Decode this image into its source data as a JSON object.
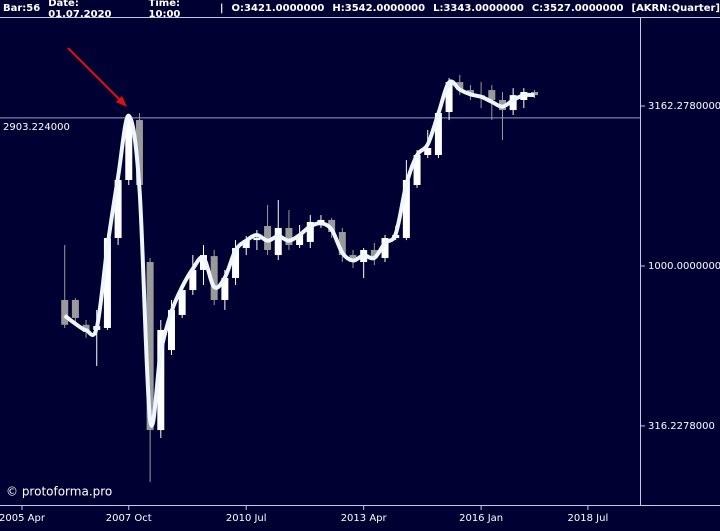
{
  "chart_data": {
    "type": "candlestick",
    "header": [
      "Bar:56",
      "Date: 01.07.2020",
      "Time: 10:00",
      "|",
      "O:3421.0000000",
      "H:3542.0000000",
      "L:3343.0000000",
      "C:3527.0000000",
      "[AKRN:Quarter]"
    ],
    "watermark": "© protoforma.pro",
    "log_scale": true,
    "up_color": "#ffffff",
    "down_color": "#9a9a9a",
    "xlim": [
      2004.735,
      2019.72
    ],
    "ylim": [
      179,
      5960
    ],
    "xticks": [
      {
        "value": 2005.25,
        "label": "2005 Apr"
      },
      {
        "value": 2007.75,
        "label": "2007 Oct"
      },
      {
        "value": 2010.5,
        "label": "2010 Jul"
      },
      {
        "value": 2013.25,
        "label": "2013 Apr"
      },
      {
        "value": 2016.0,
        "label": "2016 Jan"
      },
      {
        "value": 2018.5,
        "label": "2018 Jul"
      }
    ],
    "yticks": [
      {
        "value": 316.2278,
        "label": "316.2278000"
      },
      {
        "value": 1000,
        "label": "1000.0000000"
      },
      {
        "value": 3162.278,
        "label": "3162.2780000"
      }
    ],
    "hline": {
      "value": 2903.224,
      "label": "2903.224000",
      "color": "#8fa0c8"
    },
    "x": [
      2006.25,
      2006.5,
      2006.75,
      2007.0,
      2007.25,
      2007.5,
      2007.75,
      2008.0,
      2008.25,
      2008.5,
      2008.75,
      2009.0,
      2009.25,
      2009.5,
      2009.75,
      2010.0,
      2010.25,
      2010.5,
      2010.75,
      2011.0,
      2011.25,
      2011.5,
      2011.75,
      2012.0,
      2012.25,
      2012.5,
      2012.75,
      2013.0,
      2013.25,
      2013.5,
      2013.75,
      2014.0,
      2014.25,
      2014.5,
      2014.75,
      2015.0,
      2015.25,
      2015.5,
      2015.75,
      2016.0,
      2016.25,
      2016.5,
      2016.75,
      2017.0,
      2017.25
    ],
    "open": [
      783,
      783,
      655,
      631,
      640,
      1223,
      1857,
      2859,
      1029,
      307,
      546,
      703,
      841,
      972,
      1074,
      783,
      917,
      1138,
      1205,
      1334,
      1082,
      1315,
      1163,
      1189,
      1373,
      1393,
      1277,
      1082,
      1029,
      1122,
      1059,
      1223,
      1223,
      1791,
      2223,
      2223,
      3029,
      3758,
      3548,
      3421,
      3548,
      3303,
      3073,
      3303,
      3499
    ],
    "high": [
      1163,
      794,
      678,
      729,
      1223,
      1923,
      2964,
      3008,
      1059,
      678,
      783,
      853,
      1082,
      1163,
      1122,
      972,
      1205,
      1241,
      1296,
      1552,
      1608,
      1496,
      1343,
      1443,
      1443,
      1413,
      1315,
      1122,
      1138,
      1180,
      1250,
      1334,
      2143,
      2304,
      2661,
      3073,
      3869,
      3954,
      3678,
      3758,
      3678,
      3499,
      3597,
      3597,
      3548
    ],
    "low": [
      640,
      668,
      596,
      487,
      631,
      1163,
      1791,
      1754,
      211,
      290,
      527,
      688,
      812,
      872,
      755,
      729,
      872,
      1082,
      1122,
      1082,
      1044,
      1122,
      1138,
      1138,
      1315,
      1223,
      1029,
      986,
      917,
      1007,
      1029,
      1205,
      1205,
      1754,
      2175,
      2175,
      2859,
      3421,
      3303,
      3118,
      2859,
      2477,
      2964,
      3118,
      3350
    ],
    "close": [
      655,
      688,
      622,
      649,
      1223,
      1857,
      2859,
      1791,
      307,
      631,
      729,
      841,
      972,
      1082,
      783,
      917,
      1138,
      1205,
      1223,
      1122,
      1315,
      1163,
      1250,
      1373,
      1393,
      1277,
      1082,
      1029,
      1122,
      1059,
      1223,
      1250,
      1857,
      2223,
      2338,
      3008,
      3758,
      3548,
      3421,
      3350,
      3303,
      3073,
      3421,
      3499,
      3421
    ],
    "smooth": {
      "color": "#eef6ff",
      "values": [
        700,
        660,
        630,
        640,
        1150,
        1900,
        2950,
        1750,
        330,
        540,
        720,
        860,
        980,
        1060,
        860,
        920,
        1120,
        1200,
        1250,
        1200,
        1240,
        1200,
        1250,
        1330,
        1360,
        1300,
        1100,
        1040,
        1080,
        1060,
        1180,
        1260,
        1800,
        2220,
        2400,
        3000,
        3750,
        3560,
        3440,
        3380,
        3260,
        3150,
        3300,
        3420,
        3420
      ]
    }
  }
}
